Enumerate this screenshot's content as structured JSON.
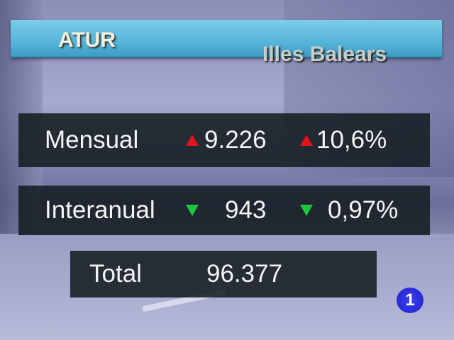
{
  "header": {
    "title": "ATUR",
    "region": "Illes Balears"
  },
  "rows": [
    {
      "label": "Mensual",
      "value": "9.226",
      "value_trend": "up",
      "percent": "10,6%",
      "percent_trend": "up"
    },
    {
      "label": "Interanual",
      "value": "943",
      "value_trend": "down",
      "percent": "0,97%",
      "percent_trend": "down"
    }
  ],
  "total": {
    "label": "Total",
    "value": "96.377"
  },
  "logo": {
    "text": "1"
  },
  "colors": {
    "up": "#e0141c",
    "down": "#1ec83c",
    "banner": "#55b5da"
  }
}
